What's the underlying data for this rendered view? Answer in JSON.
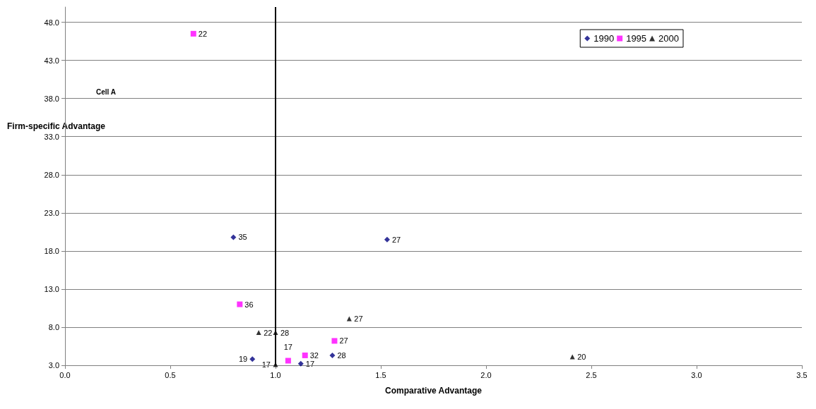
{
  "chart_data": {
    "type": "scatter",
    "xlabel": "Comparative Advantage",
    "ylabel": "Firm-specific Advantage",
    "annotations": [
      "Cell A",
      {
        "text": "35",
        "x": 0.8,
        "y": 19.8
      },
      {
        "text": "27",
        "x": 1.53,
        "y": 19.5
      },
      {
        "text": "19",
        "x": 0.89,
        "y": 3.8
      },
      {
        "text": "28",
        "x": 1.27,
        "y": 4.3
      },
      {
        "text": "17",
        "x": 1.12,
        "y": 3.2
      },
      {
        "text": "22",
        "x": 0.61,
        "y": 46.5
      },
      {
        "text": "36",
        "x": 0.83,
        "y": 11.0
      },
      {
        "text": "27",
        "x": 1.28,
        "y": 6.2
      },
      {
        "text": "32",
        "x": 1.14,
        "y": 4.3
      },
      {
        "text": "17",
        "x": 1.06,
        "y": 3.6
      },
      {
        "text": "22",
        "x": 0.92,
        "y": 7.3
      },
      {
        "text": "28",
        "x": 1.0,
        "y": 7.3
      },
      {
        "text": "27",
        "x": 1.35,
        "y": 9.1
      },
      {
        "text": "20",
        "x": 2.41,
        "y": 4.1
      },
      {
        "text": "17",
        "x": 1.0,
        "y": 3.1
      }
    ],
    "xlim": [
      0,
      3.5
    ],
    "xticks": [
      {
        "value": 0,
        "label": "0.0"
      },
      {
        "value": 0.5,
        "label": "0.5"
      },
      {
        "value": 1,
        "label": "1.0"
      },
      {
        "value": 1.5,
        "label": "1.5"
      },
      {
        "value": 2,
        "label": "2.0"
      },
      {
        "value": 2.5,
        "label": "2.5"
      },
      {
        "value": 3,
        "label": "3.0"
      },
      {
        "value": 3.5,
        "label": "3.5"
      }
    ],
    "ylim": [
      3,
      50
    ],
    "yticks": [
      {
        "value": 3,
        "label": "3.0"
      },
      {
        "value": 8,
        "label": "8.0"
      },
      {
        "value": 13,
        "label": "13.0"
      },
      {
        "value": 18,
        "label": "18.0"
      },
      {
        "value": 23,
        "label": "23.0"
      },
      {
        "value": 28,
        "label": "28.0"
      },
      {
        "value": 33,
        "label": "33.0"
      },
      {
        "value": 38,
        "label": "38.0"
      },
      {
        "value": 43,
        "label": "43.0"
      },
      {
        "value": 48,
        "label": "48.0"
      }
    ],
    "grid": "y",
    "legend": "top right",
    "ref_lines": [
      {
        "axis": "x",
        "value": 1,
        "color": "#000000"
      }
    ],
    "series": [
      {
        "name": "1990",
        "color": "#000080",
        "marker": "diamond",
        "x": [
          0.8,
          1.53,
          0.89,
          1.27,
          1.12
        ],
        "values": [
          19.8,
          19.5,
          3.8,
          4.3,
          3.2
        ]
      },
      {
        "name": "1995",
        "color": "#ff00ff",
        "marker": "square",
        "x": [
          0.61,
          0.83,
          1.28,
          1.14,
          1.06
        ],
        "values": [
          46.5,
          11.0,
          6.2,
          4.3,
          3.6
        ]
      },
      {
        "name": "2000",
        "color": "#000000",
        "marker": "triangle",
        "x": [
          0.92,
          1.0,
          1.35,
          2.41,
          1.0
        ],
        "values": [
          7.3,
          7.3,
          9.1,
          4.1,
          3.1
        ]
      }
    ]
  }
}
